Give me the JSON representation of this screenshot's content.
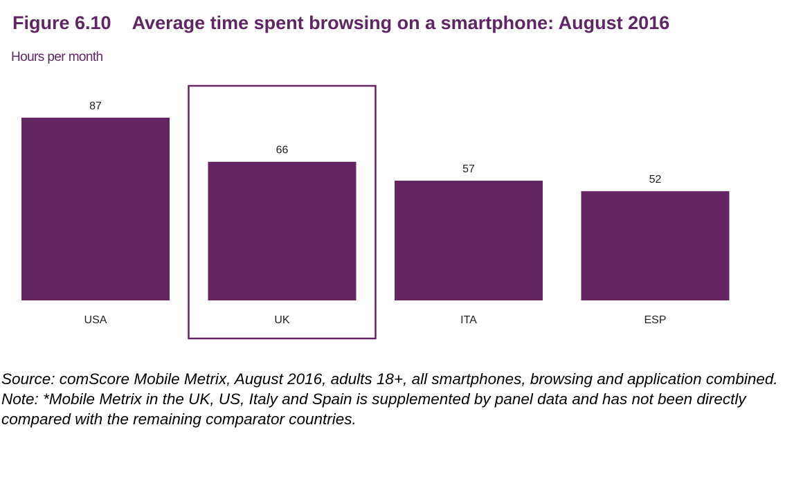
{
  "title": {
    "figure_number": "Figure 6.10",
    "text": "Average time spent browsing on a smartphone: August 2016"
  },
  "chart_data": {
    "type": "bar",
    "categories": [
      "USA",
      "UK",
      "ITA",
      "ESP"
    ],
    "values": [
      87,
      66,
      57,
      52
    ],
    "ylabel": "Hours per month",
    "ylim": [
      0,
      87
    ],
    "highlighted_category": "UK",
    "bar_color": "#632663",
    "grid": false
  },
  "source_note": "Source: comScore Mobile Metrix, August 2016, adults 18+, all smartphones, browsing and application combined.",
  "note": "Note: *Mobile Metrix in the UK, US, Italy and Spain is supplemented by panel data and has not been directly compared with the remaining comparator countries."
}
